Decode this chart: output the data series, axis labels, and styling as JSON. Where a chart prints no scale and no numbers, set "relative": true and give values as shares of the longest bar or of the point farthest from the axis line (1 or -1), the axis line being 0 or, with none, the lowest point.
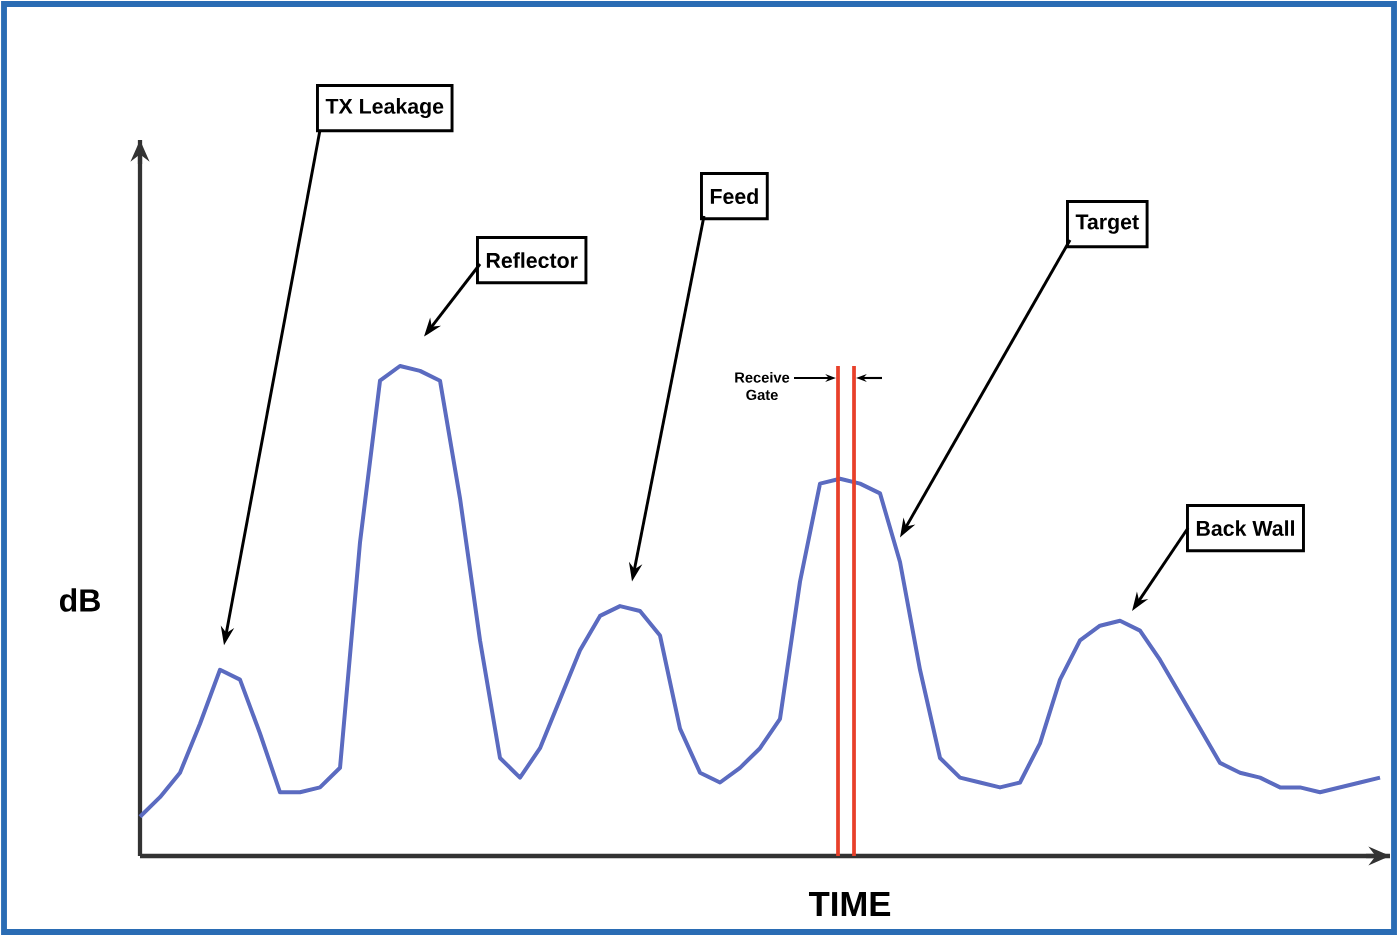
{
  "chart_data": {
    "type": "line",
    "relative": true,
    "xlabel": "TIME",
    "ylabel": "dB",
    "color": "#5b6bc0",
    "categories": [
      null,
      null,
      null,
      null,
      null,
      null,
      null,
      null,
      null,
      null,
      null,
      null,
      null,
      null,
      null,
      null,
      null,
      null,
      null,
      null,
      null,
      null,
      null,
      null,
      null,
      null,
      null,
      null,
      null,
      null,
      null,
      null,
      null,
      null,
      null,
      null,
      null,
      null,
      null,
      null,
      null,
      null,
      null,
      null,
      null,
      null,
      null,
      null,
      null,
      null,
      null,
      null,
      null,
      null,
      null,
      null,
      null,
      null,
      null,
      null,
      null,
      null,
      null
    ],
    "values": [
      0.08,
      0.12,
      0.17,
      0.27,
      0.38,
      0.36,
      0.25,
      0.13,
      0.13,
      0.14,
      0.18,
      0.64,
      0.97,
      1,
      0.99,
      0.97,
      0.73,
      0.44,
      0.2,
      0.16,
      0.22,
      0.32,
      0.42,
      0.49,
      0.51,
      0.5,
      0.45,
      0.26,
      0.17,
      0.15,
      0.18,
      0.22,
      0.28,
      0.56,
      0.76,
      0.77,
      0.76,
      0.74,
      0.6,
      0.38,
      0.2,
      0.16,
      0.15,
      0.14,
      0.15,
      0.23,
      0.36,
      0.44,
      0.47,
      0.48,
      0.46,
      0.4,
      0.33,
      0.26,
      0.19,
      0.17,
      0.16,
      0.14,
      0.14,
      0.13,
      0.14,
      0.15,
      0.16
    ],
    "annotations": [
      "TX Leakage",
      "Reflector",
      "Feed",
      "Target",
      "Back Wall",
      "Receive Gate"
    ]
  }
}
